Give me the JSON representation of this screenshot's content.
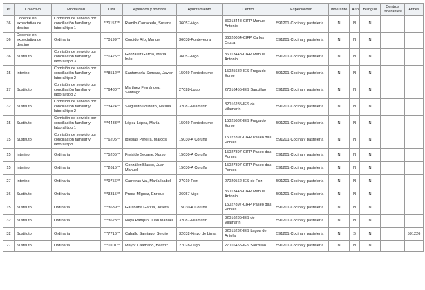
{
  "table": {
    "headers": [
      "Pr",
      "Colectivo",
      "Modalidad",
      "DNI",
      "Apellidos y nombre",
      "Ayuntamiento",
      "Centro",
      "Especialidad",
      "Itinerante",
      "Afín",
      "Bilingüe",
      "Centros itinerantes",
      "Afines"
    ],
    "rows": [
      [
        "36",
        "Docente en expectativa de destino",
        "Comisión de servicio por conciliación familiar y laboral tipo 1",
        "***1157**",
        "Ramilo Carracedo, Susana",
        "36057-Vigo",
        "36013448-CIFP Manuel Antonio",
        "591201-Cocina y pastelería",
        "N",
        "N",
        "N",
        "",
        ""
      ],
      [
        "36",
        "Docente en expectativa de destino",
        "Ordinaria",
        "***0199**",
        "Cordido Río, Manuel",
        "36038-Pontevedra",
        "36020064-CIFP Carlos Oroza",
        "591201-Cocina y pastelería",
        "N",
        "N",
        "N",
        "",
        ""
      ],
      [
        "36",
        "Sustituto",
        "Comisión de servicio por conciliación familiar y laboral tipo 3",
        "***1425**",
        "González García, María Inés",
        "36057-Vigo",
        "36013448-CIFP Manuel Antonio",
        "591201-Cocina y pastelería",
        "N",
        "N",
        "N",
        "",
        ""
      ],
      [
        "15",
        "Interino",
        "Comisión de servicio por conciliación familiar y laboral tipo 2",
        "***8512**",
        "Santamaría Somoza, Javier",
        "15069-Pontedeume",
        "15025682-IES Fraga do Eume",
        "591201-Cocina y pastelería",
        "N",
        "N",
        "N",
        "",
        ""
      ],
      [
        "27",
        "Sustituto",
        "Comisión de servicio por conciliación familiar y laboral tipo 2",
        "***6480**",
        "Martínez Fernández, Santiago",
        "27028-Lugo",
        "27016455-IES Sanxillao",
        "591201-Cocina y pastelería",
        "N",
        "N",
        "N",
        "",
        ""
      ],
      [
        "32",
        "Sustituto",
        "Comisión de servicio por conciliación familiar y laboral tipo 2",
        "***3424**",
        "Salgueiro Loureiro, Natalia",
        "32087-Vilamarín",
        "32016285-IES de Vilamarín",
        "591201-Cocina y pastelería",
        "N",
        "N",
        "N",
        "",
        ""
      ],
      [
        "15",
        "Sustituto",
        "Comisión de servicio por conciliación familiar y laboral tipo 1",
        "***4433**",
        "López López, María",
        "15069-Pontedeume",
        "15025682-IES Fraga do Eume",
        "591201-Cocina y pastelería",
        "N",
        "N",
        "N",
        "",
        ""
      ],
      [
        "15",
        "Sustituto",
        "Comisión de servicio por conciliación familiar y laboral tipo 1",
        "***6205**",
        "Iglesias Pereira, Marcos",
        "15030-A Coruña",
        "15027897-CIFP Paseo das Pontes",
        "591201-Cocina y pastelería",
        "N",
        "N",
        "N",
        "",
        ""
      ],
      [
        "15",
        "Interino",
        "Ordinaria",
        "***5205**",
        "Freixido Seoane, Xurxo",
        "15030-A Coruña",
        "15027897-CIFP Paseo das Pontes",
        "591201-Cocina y pastelería",
        "N",
        "N",
        "N",
        "",
        ""
      ],
      [
        "15",
        "Interino",
        "Ordinaria",
        "***2615**",
        "González Blasco, Juan Manuel",
        "15030-A Coruña",
        "15027897-CIFP Paseo das Pontes",
        "591201-Cocina y pastelería",
        "N",
        "N",
        "N",
        "",
        ""
      ],
      [
        "27",
        "Interino",
        "Ordinaria",
        "***9756**",
        "Carreiras Val, María Isabel",
        "27019-Foz",
        "27020562-IES de Foz",
        "591201-Cocina y pastelería",
        "N",
        "N",
        "N",
        "",
        ""
      ],
      [
        "36",
        "Sustituto",
        "Ordinaria",
        "***3315**",
        "Prada Míguez, Enrique",
        "36057-Vigo",
        "36013448-CIFP Manuel Antonio",
        "591201-Cocina y pastelería",
        "N",
        "N",
        "N",
        "",
        ""
      ],
      [
        "15",
        "Sustituto",
        "Ordinaria",
        "***3689**",
        "Garabana García, Josefa",
        "15030-A Coruña",
        "15027897-CIFP Paseo das Pontes",
        "591201-Cocina y pastelería",
        "N",
        "N",
        "N",
        "",
        ""
      ],
      [
        "32",
        "Sustituto",
        "Ordinaria",
        "***3628**",
        "Noya Pampín, Juan Manuel",
        "32087-Vilamarín",
        "32016285-IES de Vilamarín",
        "591201-Cocina y pastelería",
        "N",
        "N",
        "N",
        "",
        ""
      ],
      [
        "32",
        "Sustituto",
        "Ordinaria",
        "***7716**",
        "Caballo Santiago, Sergio",
        "32032-Xinzo de Limia",
        "32015232-IES Lagoa de Antela",
        "591201-Cocina y pastelería",
        "N",
        "S",
        "N",
        "",
        "591226"
      ],
      [
        "27",
        "Sustituto",
        "Ordinaria",
        "***0101**",
        "Mayor Caamaño, Beatriz",
        "27028-Lugo",
        "27016455-IES Sanxillao",
        "591201-Cocina y pastelería",
        "N",
        "N",
        "N",
        "",
        ""
      ]
    ]
  }
}
